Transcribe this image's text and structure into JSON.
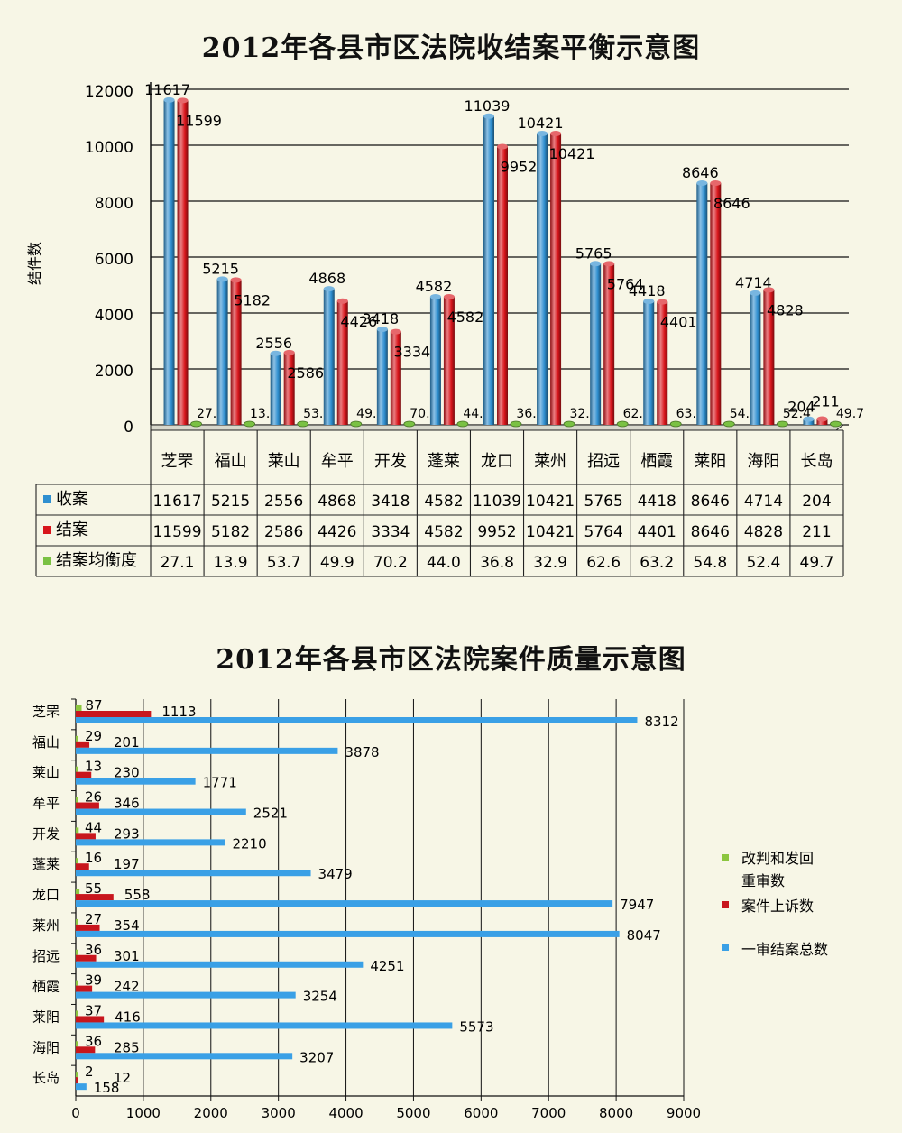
{
  "chart_data": [
    {
      "type": "bar",
      "title": "2012年各县市区法院收结案平衡示意图",
      "ylabel": "结件数",
      "ylim": [
        0,
        12000
      ],
      "yticks": [
        0,
        2000,
        4000,
        6000,
        8000,
        10000,
        12000
      ],
      "categories": [
        "芝罘",
        "福山",
        "莱山",
        "牟平",
        "开发",
        "蓬莱",
        "龙口",
        "莱州",
        "招远",
        "栖霞",
        "莱阳",
        "海阳",
        "长岛"
      ],
      "series": [
        {
          "name": "收案",
          "color": "#2f8fd0",
          "values": [
            11617,
            5215,
            2556,
            4868,
            3418,
            4582,
            11039,
            10421,
            5765,
            4418,
            8646,
            4714,
            204
          ]
        },
        {
          "name": "结案",
          "color": "#d8151b",
          "values": [
            11599,
            5182,
            2586,
            4426,
            3334,
            4582,
            9952,
            10421,
            5764,
            4401,
            8646,
            4828,
            211
          ]
        },
        {
          "name": "结案均衡度",
          "color": "#7ac143",
          "values": [
            27.1,
            13.9,
            53.7,
            49.9,
            70.2,
            44.0,
            36.8,
            32.9,
            62.6,
            63.2,
            54.8,
            52.4,
            49.7
          ]
        }
      ],
      "data_labels": {
        "收案": [
          "11617",
          "5215",
          "2556",
          "4868",
          "3418",
          "4582",
          "11039",
          "10421",
          "5765",
          "4418",
          "8646",
          "4714",
          "204"
        ],
        "结案": [
          "11599",
          "5182",
          "2586",
          "4426",
          "3334",
          "4582",
          "9952",
          "10421",
          "5764",
          "4401",
          "8646",
          "4828",
          "211"
        ],
        "结案均衡度": [
          "27.1",
          "13.9",
          "53.7",
          "49.9",
          "70.2",
          "44.0",
          "36.8",
          "32.9",
          "62.6",
          "63.2",
          "54.8",
          "52.4",
          "49.7"
        ]
      },
      "grid": true,
      "legend": "data-table"
    },
    {
      "type": "bar",
      "orientation": "horizontal",
      "title": "2012年各县市区法院案件质量示意图",
      "xlim": [
        0,
        9000
      ],
      "xticks": [
        0,
        1000,
        2000,
        3000,
        4000,
        5000,
        6000,
        7000,
        8000,
        9000
      ],
      "categories": [
        "芝罘",
        "福山",
        "莱山",
        "牟平",
        "开发",
        "蓬莱",
        "龙口",
        "莱州",
        "招远",
        "栖霞",
        "莱阳",
        "海阳",
        "长岛"
      ],
      "series": [
        {
          "name": "改判和发回重审数",
          "color": "#8cc63f",
          "values": [
            87,
            29,
            13,
            26,
            44,
            16,
            55,
            27,
            36,
            39,
            37,
            36,
            2
          ]
        },
        {
          "name": "案件上诉数",
          "color": "#c8161d",
          "values": [
            1113,
            201,
            230,
            346,
            293,
            197,
            558,
            354,
            301,
            242,
            416,
            285,
            12
          ]
        },
        {
          "name": "一审结案总数",
          "color": "#3aa0e6",
          "values": [
            8312,
            3878,
            1771,
            2521,
            2210,
            3479,
            7947,
            8047,
            4251,
            3254,
            5573,
            3207,
            158
          ]
        }
      ],
      "legend_labels": [
        "改判和发回",
        "重审数",
        "案件上诉数",
        "一审结案总数"
      ],
      "grid": true,
      "legend": "right"
    }
  ]
}
